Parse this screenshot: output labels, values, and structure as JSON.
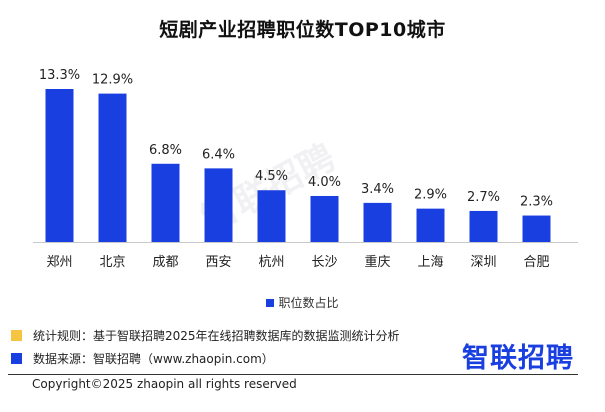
{
  "chart_data": {
    "type": "bar",
    "title": "短剧产业招聘职位数TOP10城市",
    "categories": [
      "郑州",
      "北京",
      "成都",
      "西安",
      "杭州",
      "长沙",
      "重庆",
      "上海",
      "深圳",
      "合肥"
    ],
    "series": [
      {
        "name": "职位数占比",
        "values": [
          13.3,
          12.9,
          6.8,
          6.4,
          4.5,
          4.0,
          3.4,
          2.9,
          2.7,
          2.3
        ],
        "labels": [
          "13.3%",
          "12.9%",
          "6.8%",
          "6.4%",
          "4.5%",
          "4.0%",
          "3.4%",
          "2.9%",
          "2.7%",
          "2.3%"
        ],
        "color": "#1a3fe0"
      }
    ],
    "xlabel": "",
    "ylabel": "",
    "ylim": [
      0,
      14
    ],
    "grid": false,
    "legend": "bottom-center"
  },
  "watermark": "智联招聘",
  "notes": {
    "rule": "统计规则：基于智联招聘2025年在线招聘数据库的数据监测统计分析",
    "source": "数据来源：智联招聘（www.zhaopin.com）",
    "rule_color": "#f5c542",
    "source_color": "#1a3fe0"
  },
  "logo": "智联招聘",
  "copyright": "Copyright©2025 zhaopin all rights reserved"
}
